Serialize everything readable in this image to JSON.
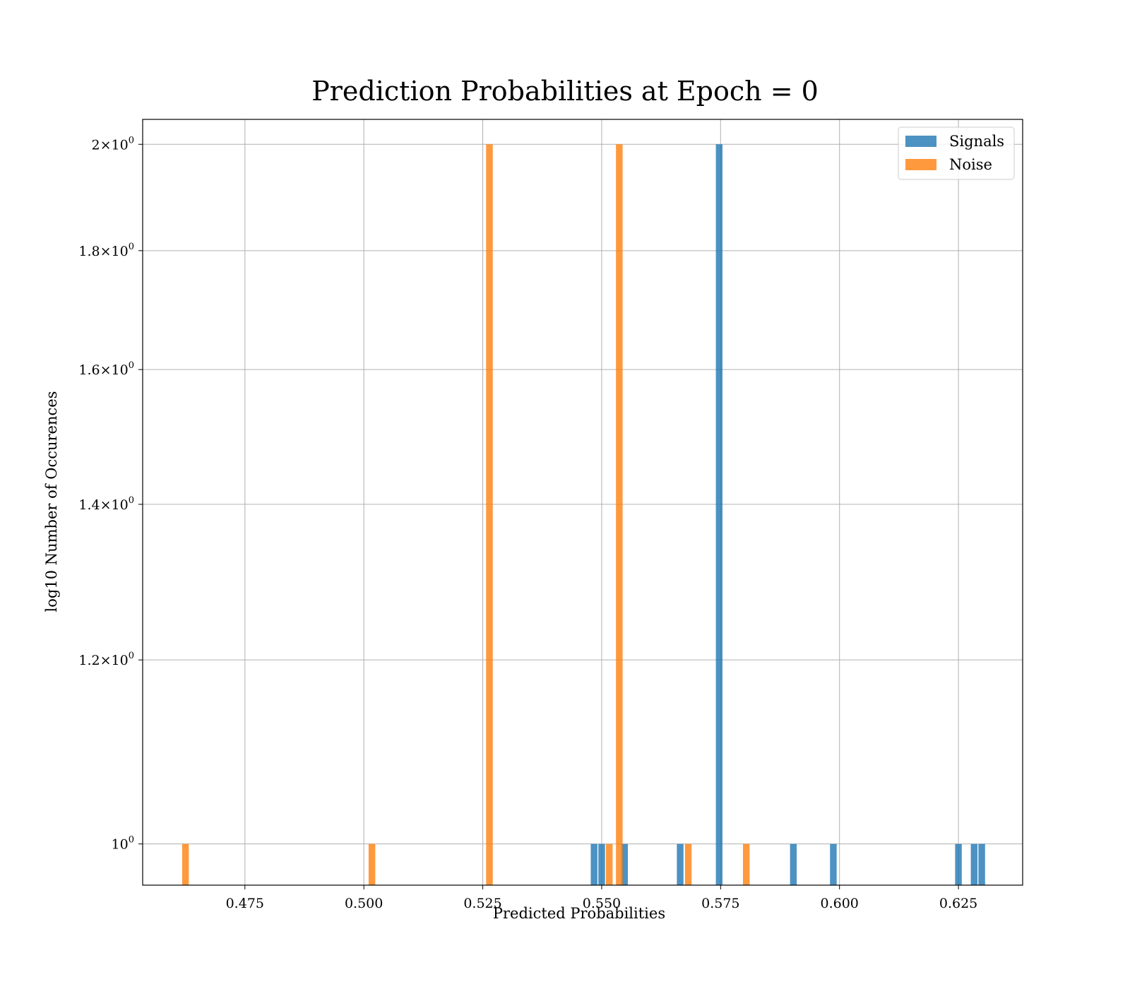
{
  "chart_data": {
    "type": "bar",
    "title": "Prediction Probabilities at Epoch = 0",
    "xlabel": "Predicted Probabilities",
    "ylabel": "log10 Number of Occurences",
    "xlim": [
      0.4535,
      0.6385
    ],
    "ylim": [
      0.96,
      2.05
    ],
    "yscale": "log",
    "grid": true,
    "legend_position": "top-right",
    "bin_width": 0.0014,
    "x_ticks": [
      {
        "value": 0.475,
        "label": "0.475"
      },
      {
        "value": 0.5,
        "label": "0.500"
      },
      {
        "value": 0.525,
        "label": "0.525"
      },
      {
        "value": 0.55,
        "label": "0.550"
      },
      {
        "value": 0.575,
        "label": "0.575"
      },
      {
        "value": 0.6,
        "label": "0.600"
      },
      {
        "value": 0.625,
        "label": "0.625"
      }
    ],
    "y_ticks": [
      {
        "value": 1.0,
        "base": "10",
        "exp": "0"
      },
      {
        "value": 1.2,
        "base": "1.2×10",
        "exp": "0"
      },
      {
        "value": 1.4,
        "base": "1.4×10",
        "exp": "0"
      },
      {
        "value": 1.6,
        "base": "1.6×10",
        "exp": "0"
      },
      {
        "value": 1.8,
        "base": "1.8×10",
        "exp": "0"
      },
      {
        "value": 2.0,
        "base": "2×10",
        "exp": "0"
      }
    ],
    "series": [
      {
        "name": "Signals",
        "color": "#1f77b4",
        "bars": [
          {
            "x": 0.5484,
            "count": 1
          },
          {
            "x": 0.55,
            "count": 1
          },
          {
            "x": 0.5548,
            "count": 1
          },
          {
            "x": 0.5665,
            "count": 1
          },
          {
            "x": 0.5747,
            "count": 2
          },
          {
            "x": 0.5903,
            "count": 1
          },
          {
            "x": 0.5987,
            "count": 1
          },
          {
            "x": 0.625,
            "count": 1
          },
          {
            "x": 0.6283,
            "count": 1
          },
          {
            "x": 0.6299,
            "count": 1
          }
        ]
      },
      {
        "name": "Noise",
        "color": "#ff7f0e",
        "bars": [
          {
            "x": 0.4625,
            "count": 1
          },
          {
            "x": 0.5017,
            "count": 1
          },
          {
            "x": 0.5264,
            "count": 2
          },
          {
            "x": 0.5516,
            "count": 1
          },
          {
            "x": 0.5537,
            "count": 2
          },
          {
            "x": 0.5682,
            "count": 1
          },
          {
            "x": 0.5804,
            "count": 1
          }
        ]
      }
    ]
  }
}
